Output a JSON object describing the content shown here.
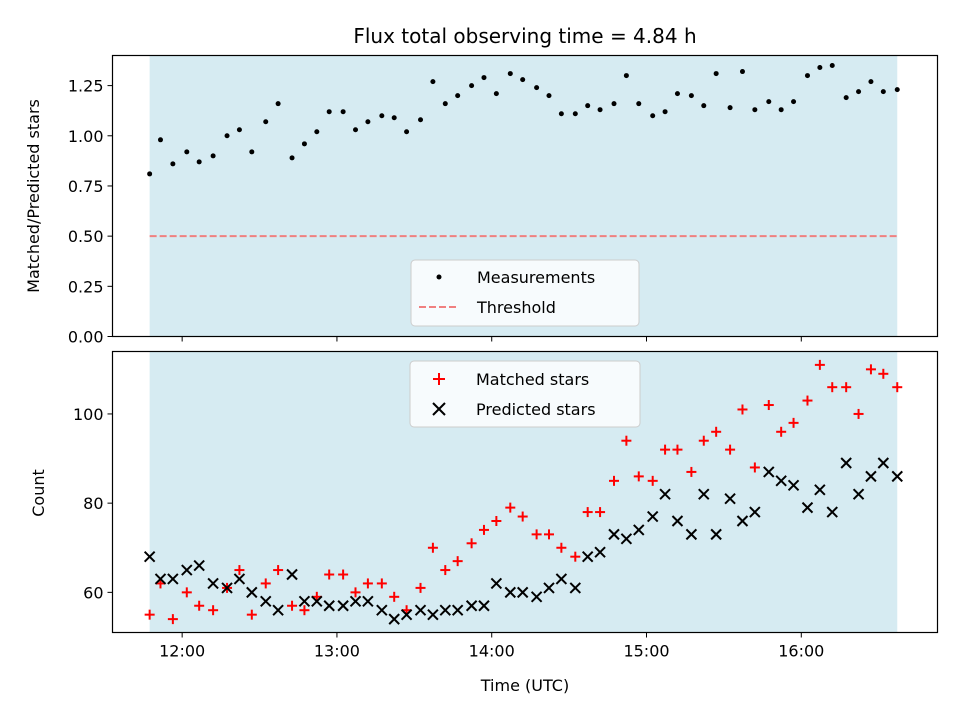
{
  "chart_data": [
    {
      "panel": "top",
      "type": "scatter",
      "title": "Flux total observing time = 4.84 h",
      "xlabel": "",
      "ylabel": "Matched/Predicted stars",
      "xlim": [
        11.55,
        16.88
      ],
      "ylim": [
        0.0,
        1.4
      ],
      "yticks": [
        0.0,
        0.25,
        0.5,
        0.75,
        1.0,
        1.25
      ],
      "ytick_labels": [
        "0.00",
        "0.25",
        "0.50",
        "0.75",
        "1.00",
        "1.25"
      ],
      "xticks": [
        12,
        13,
        14,
        15,
        16
      ],
      "grid": false,
      "legend_position": "bottom-center",
      "shaded_span": [
        11.79,
        16.62
      ],
      "threshold": 0.5,
      "series": [
        {
          "name": "Measurements",
          "style": "point",
          "color": "#000000",
          "x": [
            11.79,
            11.86,
            11.94,
            12.03,
            12.11,
            12.2,
            12.29,
            12.37,
            12.45,
            12.54,
            12.62,
            12.71,
            12.79,
            12.87,
            12.95,
            13.04,
            13.12,
            13.2,
            13.29,
            13.37,
            13.45,
            13.54,
            13.62,
            13.7,
            13.78,
            13.87,
            13.95,
            14.03,
            14.12,
            14.2,
            14.29,
            14.37,
            14.45,
            14.54,
            14.62,
            14.7,
            14.79,
            14.87,
            14.95,
            15.04,
            15.12,
            15.2,
            15.29,
            15.37,
            15.45,
            15.54,
            15.62,
            15.7,
            15.79,
            15.87,
            15.95,
            16.04,
            16.12,
            16.2,
            16.29,
            16.37,
            16.45,
            16.53,
            16.62
          ],
          "y": [
            0.81,
            0.98,
            0.86,
            0.92,
            0.87,
            0.9,
            1.0,
            1.03,
            0.92,
            1.07,
            1.16,
            0.89,
            0.96,
            1.02,
            1.12,
            1.12,
            1.03,
            1.07,
            1.1,
            1.09,
            1.02,
            1.08,
            1.27,
            1.16,
            1.2,
            1.25,
            1.29,
            1.21,
            1.31,
            1.28,
            1.24,
            1.2,
            1.11,
            1.11,
            1.15,
            1.13,
            1.16,
            1.3,
            1.16,
            1.1,
            1.12,
            1.21,
            1.2,
            1.15,
            1.31,
            1.14,
            1.32,
            1.13,
            1.17,
            1.13,
            1.17,
            1.3,
            1.34,
            1.35,
            1.19,
            1.22,
            1.27,
            1.22,
            1.23
          ]
        },
        {
          "name": "Threshold",
          "style": "dashed-line",
          "color": "#f08080",
          "x": [
            11.79,
            16.62
          ],
          "y": [
            0.5,
            0.5
          ]
        }
      ]
    },
    {
      "panel": "bottom",
      "type": "scatter",
      "title": "",
      "xlabel": "Time (UTC)",
      "ylabel": "Count",
      "xlim": [
        11.55,
        16.88
      ],
      "ylim": [
        51,
        114
      ],
      "yticks": [
        60,
        80,
        100
      ],
      "ytick_labels": [
        "60",
        "80",
        "100"
      ],
      "xticks": [
        12,
        13,
        14,
        15,
        16
      ],
      "xtick_labels": [
        "12:00",
        "13:00",
        "14:00",
        "15:00",
        "16:00"
      ],
      "grid": false,
      "legend_position": "top-center",
      "shaded_span": [
        11.79,
        16.62
      ],
      "series": [
        {
          "name": "Matched stars",
          "marker": "plus",
          "color": "#ff0000",
          "x": [
            11.79,
            11.86,
            11.94,
            12.03,
            12.11,
            12.2,
            12.29,
            12.37,
            12.45,
            12.54,
            12.62,
            12.71,
            12.79,
            12.87,
            12.95,
            13.04,
            13.12,
            13.2,
            13.29,
            13.37,
            13.45,
            13.54,
            13.62,
            13.7,
            13.78,
            13.87,
            13.95,
            14.03,
            14.12,
            14.2,
            14.29,
            14.37,
            14.45,
            14.54,
            14.62,
            14.7,
            14.79,
            14.87,
            14.95,
            15.04,
            15.12,
            15.2,
            15.29,
            15.37,
            15.45,
            15.54,
            15.62,
            15.7,
            15.79,
            15.87,
            15.95,
            16.04,
            16.12,
            16.2,
            16.29,
            16.37,
            16.45,
            16.53,
            16.62
          ],
          "y": [
            55,
            62,
            54,
            60,
            57,
            56,
            61,
            65,
            55,
            62,
            65,
            57,
            56,
            59,
            64,
            64,
            60,
            62,
            62,
            59,
            56,
            61,
            70,
            65,
            67,
            71,
            74,
            76,
            79,
            77,
            73,
            73,
            70,
            68,
            78,
            78,
            85,
            94,
            86,
            85,
            92,
            92,
            87,
            94,
            96,
            92,
            101,
            88,
            102,
            96,
            98,
            103,
            111,
            106,
            106,
            100,
            110,
            109,
            106
          ]
        },
        {
          "name": "Predicted stars",
          "marker": "x",
          "color": "#000000",
          "x": [
            11.79,
            11.86,
            11.94,
            12.03,
            12.11,
            12.2,
            12.29,
            12.37,
            12.45,
            12.54,
            12.62,
            12.71,
            12.79,
            12.87,
            12.95,
            13.04,
            13.12,
            13.2,
            13.29,
            13.37,
            13.45,
            13.54,
            13.62,
            13.7,
            13.78,
            13.87,
            13.95,
            14.03,
            14.12,
            14.2,
            14.29,
            14.37,
            14.45,
            14.54,
            14.62,
            14.7,
            14.79,
            14.87,
            14.95,
            15.04,
            15.12,
            15.2,
            15.29,
            15.37,
            15.45,
            15.54,
            15.62,
            15.7,
            15.79,
            15.87,
            15.95,
            16.04,
            16.12,
            16.2,
            16.29,
            16.37,
            16.45,
            16.53,
            16.62
          ],
          "y": [
            68,
            63,
            63,
            65,
            66,
            62,
            61,
            63,
            60,
            58,
            56,
            64,
            58,
            58,
            57,
            57,
            58,
            58,
            56,
            54,
            55,
            56,
            55,
            56,
            56,
            57,
            57,
            62,
            60,
            60,
            59,
            61,
            63,
            61,
            68,
            69,
            73,
            72,
            74,
            77,
            82,
            76,
            73,
            82,
            73,
            81,
            76,
            78,
            87,
            85,
            84,
            79,
            83,
            78,
            89,
            82,
            86,
            89,
            86
          ]
        }
      ]
    }
  ]
}
